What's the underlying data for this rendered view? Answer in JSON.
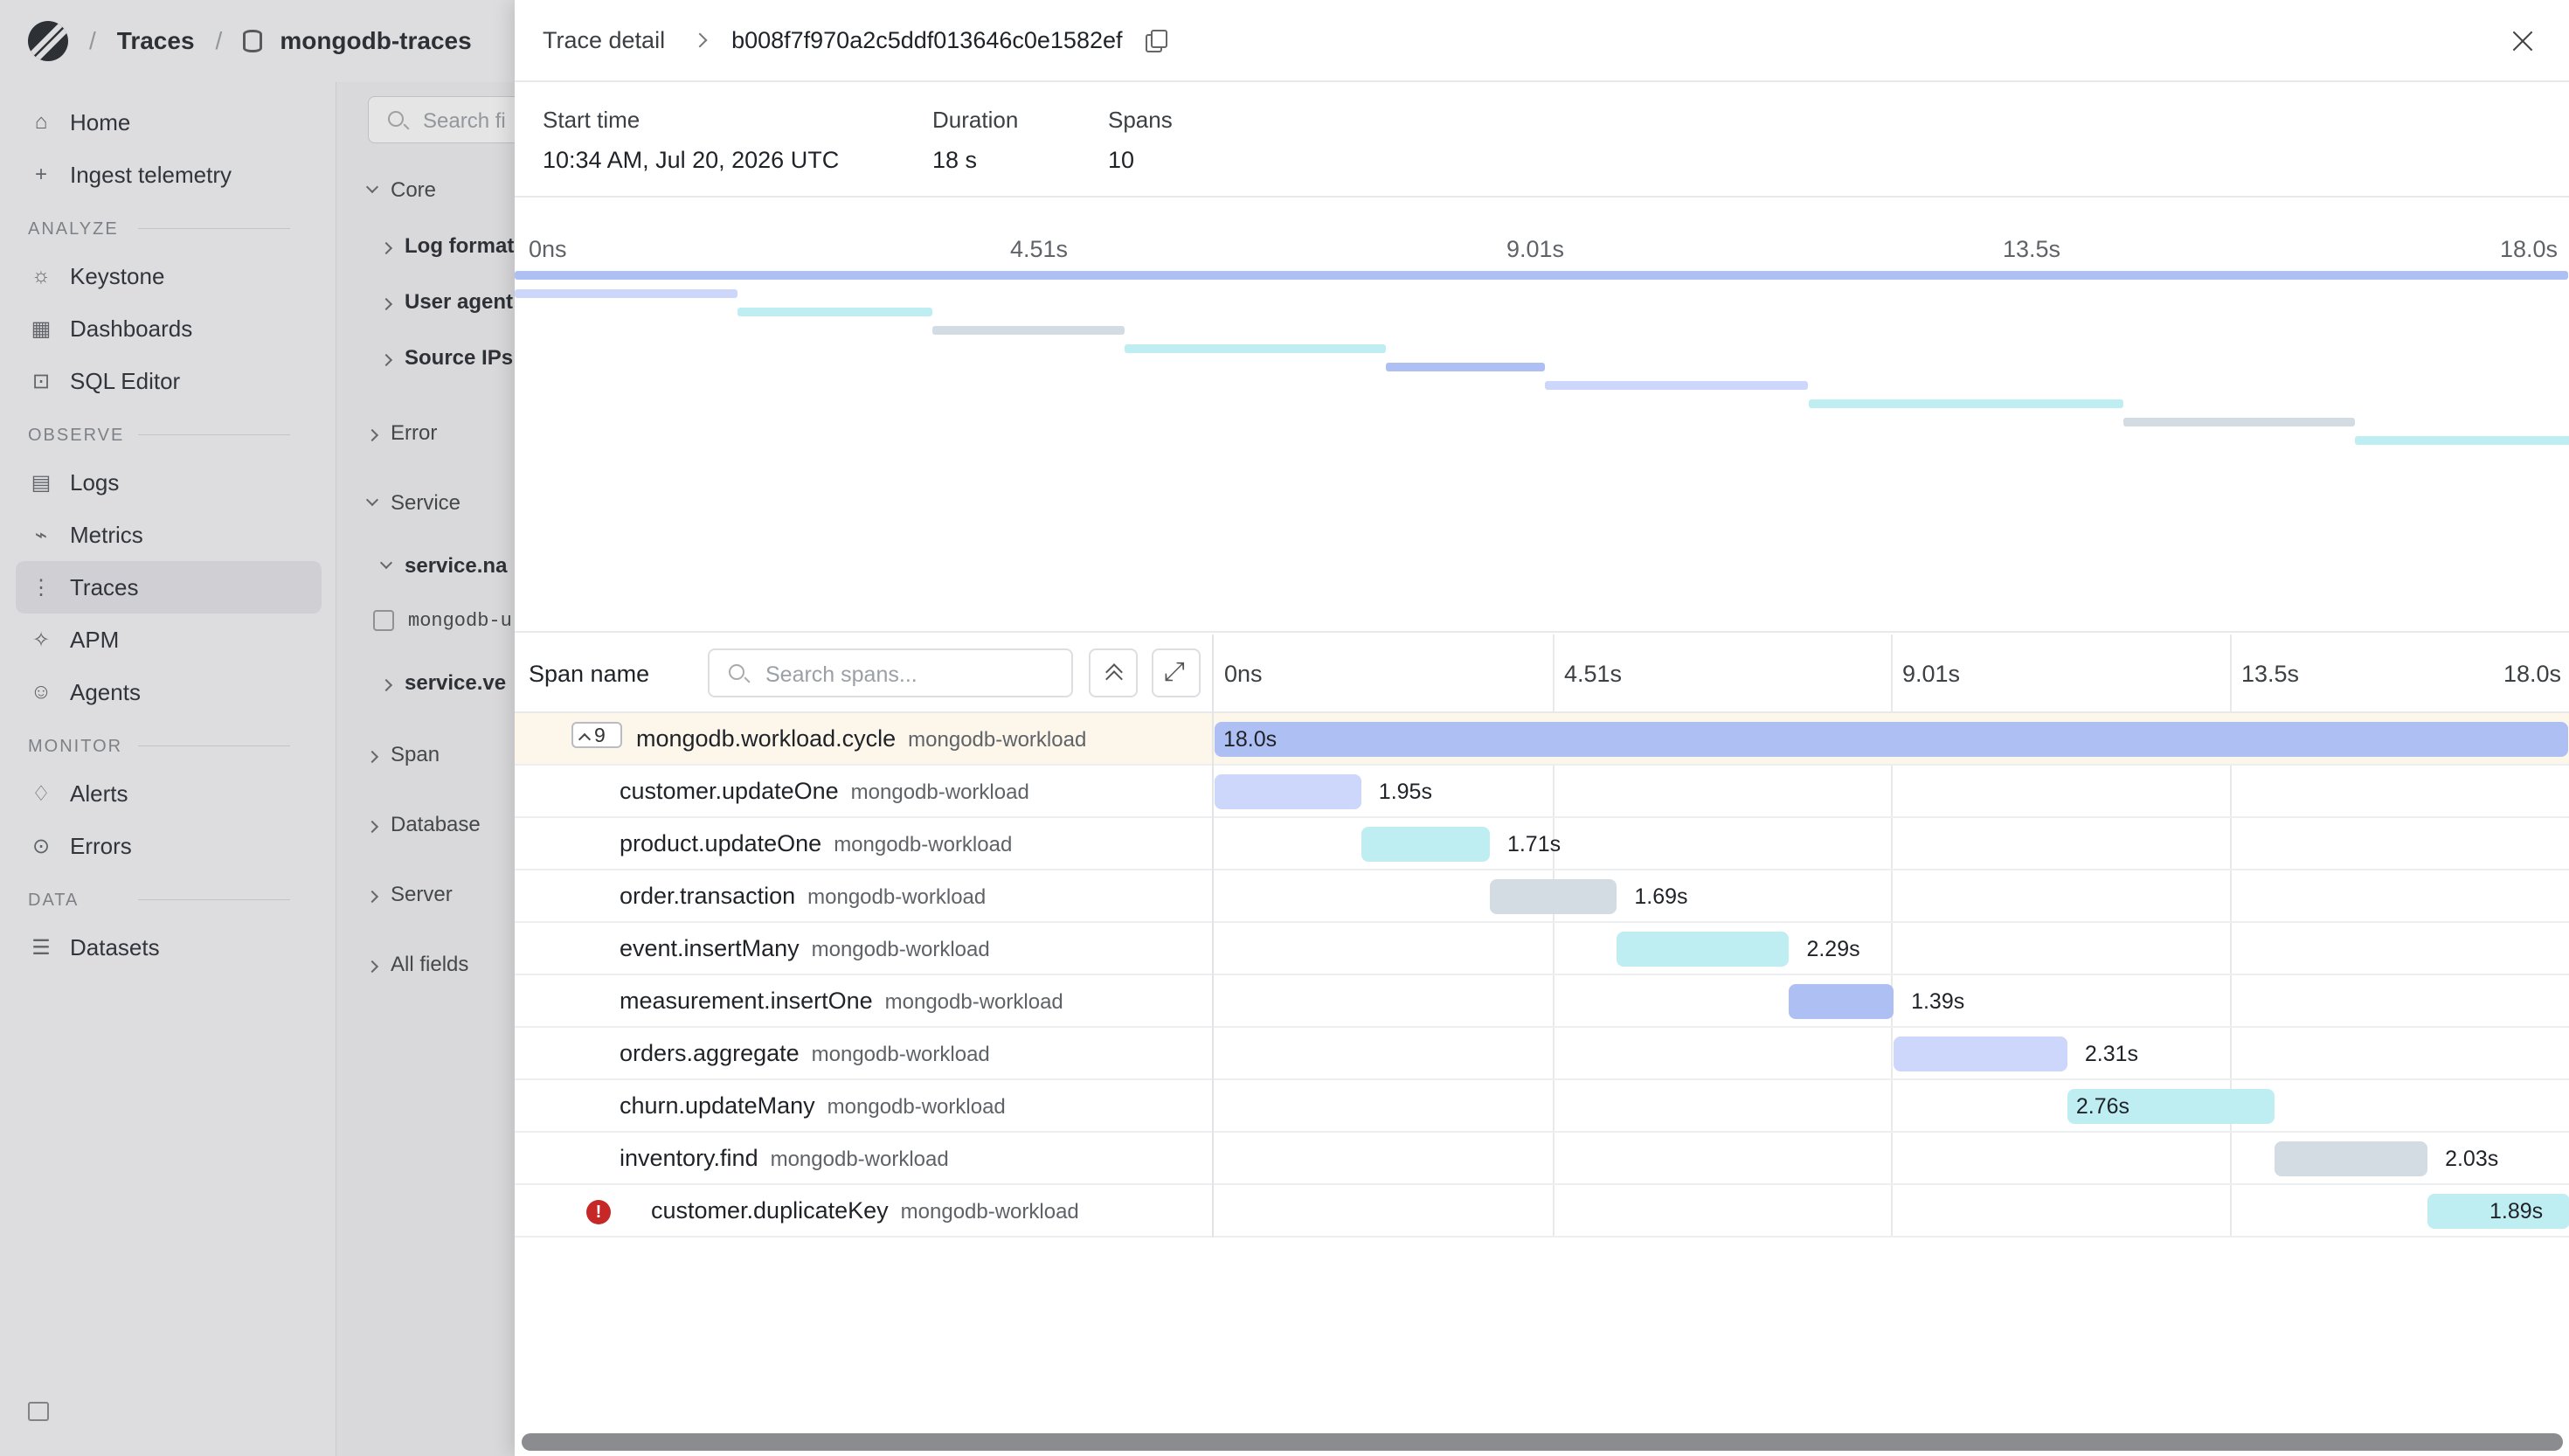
{
  "breadcrumb": {
    "section": "Traces",
    "dataset": "mongodb-traces"
  },
  "sidebar": {
    "top": [
      {
        "label": "Home",
        "icon": "home-icon"
      },
      {
        "label": "Ingest telemetry",
        "icon": "plus-icon"
      }
    ],
    "sections": [
      {
        "title": "ANALYZE",
        "items": [
          {
            "label": "Keystone",
            "icon": "sparkle-icon"
          },
          {
            "label": "Dashboards",
            "icon": "grid-icon"
          },
          {
            "label": "SQL Editor",
            "icon": "terminal-icon"
          }
        ]
      },
      {
        "title": "OBSERVE",
        "items": [
          {
            "label": "Logs",
            "icon": "document-icon"
          },
          {
            "label": "Metrics",
            "icon": "chart-icon"
          },
          {
            "label": "Traces",
            "icon": "traces-icon",
            "active": true
          },
          {
            "label": "APM",
            "icon": "apm-icon"
          },
          {
            "label": "Agents",
            "icon": "agent-icon"
          }
        ]
      },
      {
        "title": "MONITOR",
        "items": [
          {
            "label": "Alerts",
            "icon": "bell-icon"
          },
          {
            "label": "Errors",
            "icon": "error-icon"
          }
        ]
      },
      {
        "title": "DATA",
        "items": [
          {
            "label": "Datasets",
            "icon": "database-icon"
          }
        ]
      }
    ]
  },
  "filters": {
    "search_placeholder": "Search fi",
    "items": [
      "Core",
      "Log format",
      "User agent",
      "Source IPs",
      "Error",
      "Service",
      "service.na",
      "mongodb-u",
      "service.ve",
      "Span",
      "Database",
      "Server",
      "All fields"
    ]
  },
  "drawer": {
    "title": "Trace detail",
    "trace_id": "b008f7f970a2c5ddf013646c0e1582ef",
    "meta": [
      {
        "label": "Start time",
        "value": "10:34 AM, Jul 20, 2026 UTC"
      },
      {
        "label": "Duration",
        "value": "18 s"
      },
      {
        "label": "Spans",
        "value": "10"
      }
    ],
    "ticks": [
      "0ns",
      "4.51s",
      "9.01s",
      "13.5s",
      "18.0s"
    ],
    "span_name_header": "Span name",
    "search_placeholder": "Search spans...",
    "child_count": "9",
    "colors": {
      "blue": "#aebff3",
      "lightblue": "#cdd6fb",
      "cyan": "#bfeef2",
      "gray": "#d3dbe3"
    }
  },
  "spans": [
    {
      "name": "mongodb.workload.cycle",
      "service": "mongodb-workload",
      "duration": "18.0s",
      "start_s": 0,
      "dur_s": 18.0,
      "color": "#aebff3",
      "selected": true
    },
    {
      "name": "customer.updateOne",
      "service": "mongodb-workload",
      "duration": "1.95s",
      "start_s": 0,
      "dur_s": 1.95,
      "color": "#cdd6fb"
    },
    {
      "name": "product.updateOne",
      "service": "mongodb-workload",
      "duration": "1.71s",
      "start_s": 1.95,
      "dur_s": 1.71,
      "color": "#bfeef2"
    },
    {
      "name": "order.transaction",
      "service": "mongodb-workload",
      "duration": "1.69s",
      "start_s": 3.66,
      "dur_s": 1.69,
      "color": "#d3dbe3"
    },
    {
      "name": "event.insertMany",
      "service": "mongodb-workload",
      "duration": "2.29s",
      "start_s": 5.35,
      "dur_s": 2.29,
      "color": "#bfeef2"
    },
    {
      "name": "measurement.insertOne",
      "service": "mongodb-workload",
      "duration": "1.39s",
      "start_s": 7.64,
      "dur_s": 1.39,
      "color": "#aebff3"
    },
    {
      "name": "orders.aggregate",
      "service": "mongodb-workload",
      "duration": "2.31s",
      "start_s": 9.03,
      "dur_s": 2.31,
      "color": "#cdd6fb"
    },
    {
      "name": "churn.updateMany",
      "service": "mongodb-workload",
      "duration": "2.76s",
      "start_s": 11.34,
      "dur_s": 2.76,
      "color": "#bfeef2"
    },
    {
      "name": "inventory.find",
      "service": "mongodb-workload",
      "duration": "2.03s",
      "start_s": 14.1,
      "dur_s": 2.03,
      "color": "#d3dbe3"
    },
    {
      "name": "customer.duplicateKey",
      "service": "mongodb-workload",
      "duration": "1.89s",
      "start_s": 16.13,
      "dur_s": 1.89,
      "color": "#bfeef2",
      "error": true
    }
  ]
}
